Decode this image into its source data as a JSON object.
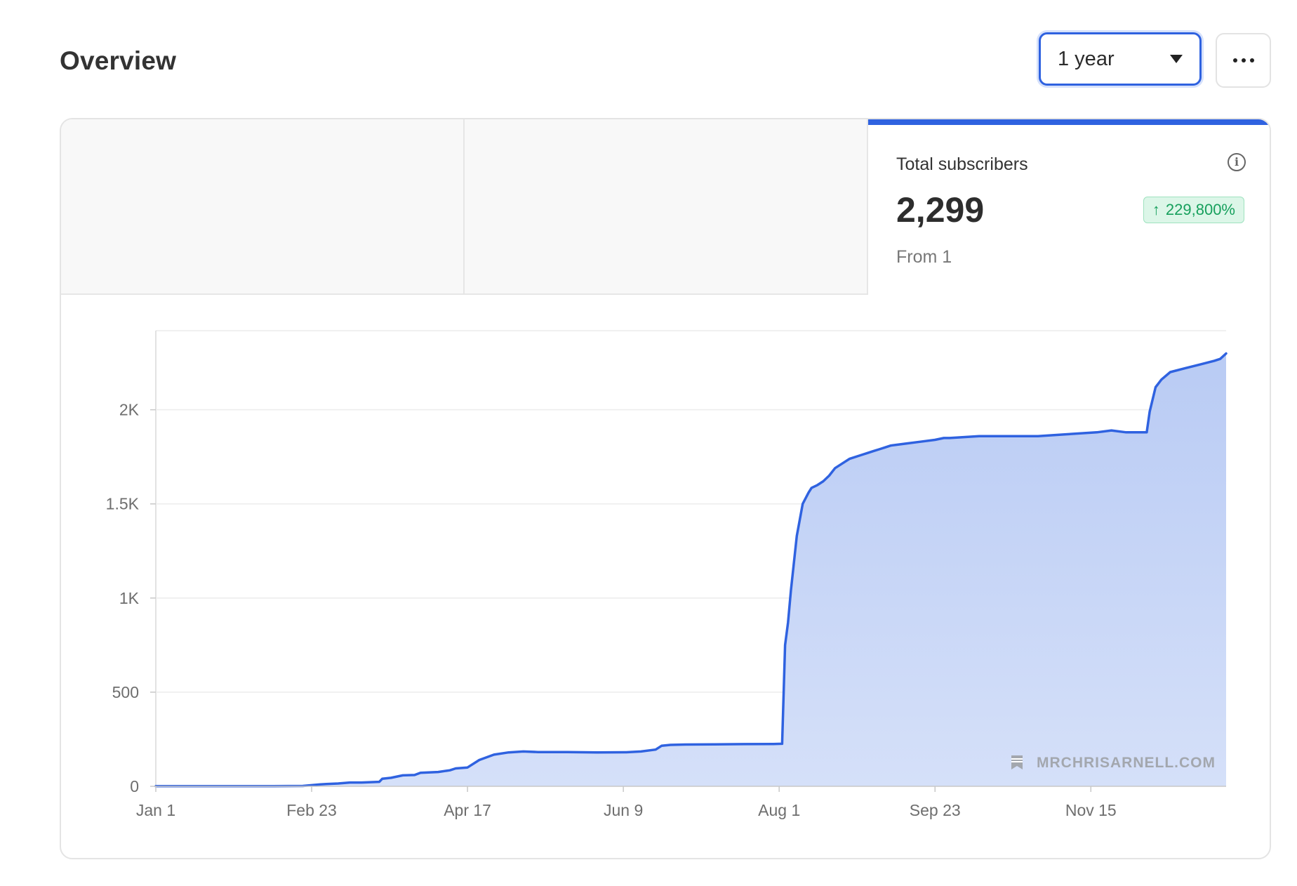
{
  "header": {
    "title": "Overview",
    "period_select": {
      "value": "1 year"
    },
    "more_button": {
      "icon": "more-horizontal-icon"
    }
  },
  "metric": {
    "label": "Total subscribers",
    "value": "2,299",
    "change": "229,800%",
    "change_direction": "up",
    "subtext": "From 1",
    "accent_color": "#2f62e0",
    "positive_color": "#17a05d"
  },
  "watermark": {
    "text": "MRCHRISARNELL.COM",
    "icon": "bookmark-icon"
  },
  "chart_data": {
    "type": "area",
    "title": "",
    "xlabel": "",
    "ylabel": "",
    "x_ticks": [
      "Jan 1",
      "Feb 23",
      "Apr 17",
      "Jun 9",
      "Aug 1",
      "Sep 23",
      "Nov 15"
    ],
    "x_tick_days": [
      0,
      53,
      106,
      159,
      212,
      265,
      318
    ],
    "x_range_days": [
      0,
      364
    ],
    "y_ticks": [
      {
        "value": 0,
        "label": "0"
      },
      {
        "value": 500,
        "label": "500"
      },
      {
        "value": 1000,
        "label": "1K"
      },
      {
        "value": 1500,
        "label": "1.5K"
      },
      {
        "value": 2000,
        "label": "2K"
      }
    ],
    "ylim": [
      0,
      2420
    ],
    "grid": true,
    "line_color": "#2f62e0",
    "fill_color": "#c2d3f6",
    "series": [
      {
        "x": [
          0,
          20,
          40,
          50,
          56,
          58,
          62,
          66,
          70,
          76,
          77,
          80,
          84,
          88,
          90,
          96,
          100,
          102,
          106,
          110,
          115,
          120,
          125,
          130,
          140,
          150,
          160,
          165,
          170,
          172,
          175,
          180,
          190,
          200,
          210,
          213,
          214,
          215,
          216,
          218,
          220,
          222,
          223,
          225,
          227,
          229,
          231,
          234,
          236,
          240,
          242,
          244,
          246,
          248,
          250,
          255,
          260,
          265,
          268,
          270,
          280,
          290,
          300,
          310,
          320,
          325,
          330,
          335,
          337,
          338,
          340,
          342,
          345,
          350,
          355,
          360,
          362,
          364
        ],
        "y": [
          1,
          1,
          1,
          2,
          10,
          12,
          15,
          20,
          20,
          24,
          40,
          45,
          58,
          60,
          72,
          76,
          85,
          95,
          100,
          140,
          168,
          180,
          185,
          182,
          182,
          180,
          181,
          185,
          195,
          215,
          220,
          222,
          223,
          224,
          225,
          226,
          750,
          870,
          1040,
          1330,
          1500,
          1560,
          1585,
          1600,
          1620,
          1650,
          1690,
          1720,
          1740,
          1760,
          1770,
          1780,
          1790,
          1800,
          1810,
          1820,
          1830,
          1840,
          1850,
          1850,
          1860,
          1860,
          1860,
          1870,
          1880,
          1890,
          1880,
          1880,
          1880,
          1990,
          2120,
          2160,
          2200,
          2220,
          2240,
          2260,
          2270,
          2299
        ]
      }
    ]
  }
}
